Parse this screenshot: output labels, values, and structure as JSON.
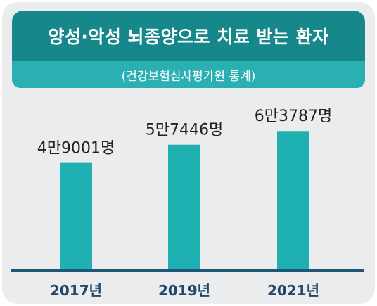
{
  "header": {
    "title": "양성·악성 뇌종양으로 치료 받는 환자",
    "source": "(건강보험심사평가원 통계)"
  },
  "colors": {
    "title_bg": "#16878a",
    "subtitle_bg": "#2ab0b2",
    "bar": "#1fb1b2",
    "baseline": "#1f5576",
    "year_text": "#22476b",
    "card_bg": "#eaecee"
  },
  "chart_data": {
    "type": "bar",
    "title": "양성·악성 뇌종양으로 치료 받는 환자",
    "categories": [
      "2017년",
      "2019년",
      "2021년"
    ],
    "values": [
      49001,
      57446,
      63787
    ],
    "value_labels": [
      "4만9001명",
      "5만7446명",
      "6만3787명"
    ],
    "xlabel": "",
    "ylabel": "",
    "ylim": [
      0,
      70000
    ],
    "grid": false,
    "legend": "none"
  }
}
